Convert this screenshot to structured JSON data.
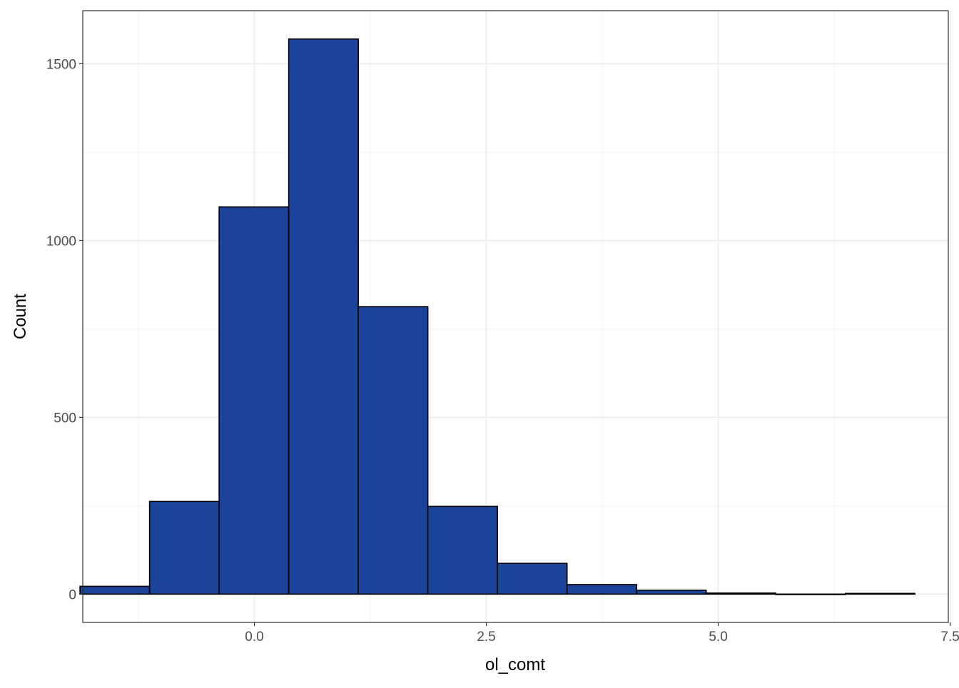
{
  "chart_data": {
    "type": "bar",
    "subtype": "histogram",
    "title": "",
    "xlabel": "ol_comt",
    "ylabel": "Count",
    "xlim": [
      -1.85,
      7.48
    ],
    "ylim": [
      -80,
      1650
    ],
    "x_ticks": [
      0.0,
      2.5,
      5.0,
      7.5
    ],
    "x_tick_labels": [
      "0.0",
      "2.5",
      "5.0",
      "7.5"
    ],
    "x_minor_ticks": [
      -1.25,
      1.25,
      3.75,
      6.25
    ],
    "y_ticks": [
      0,
      500,
      1000,
      1500
    ],
    "y_tick_labels": [
      "0",
      "500",
      "1000",
      "1500"
    ],
    "y_minor_ticks": [
      250,
      750,
      1250
    ],
    "grid": true,
    "bar_fill": "#1a4399",
    "bar_edge": "#000000",
    "bins": [
      {
        "x_start": -1.88,
        "x_end": -1.13,
        "count": 22
      },
      {
        "x_start": -1.13,
        "x_end": -0.38,
        "count": 262
      },
      {
        "x_start": -0.38,
        "x_end": 0.37,
        "count": 1095
      },
      {
        "x_start": 0.37,
        "x_end": 1.12,
        "count": 1570
      },
      {
        "x_start": 1.12,
        "x_end": 1.87,
        "count": 813
      },
      {
        "x_start": 1.87,
        "x_end": 2.62,
        "count": 248
      },
      {
        "x_start": 2.62,
        "x_end": 3.37,
        "count": 87
      },
      {
        "x_start": 3.37,
        "x_end": 4.12,
        "count": 27
      },
      {
        "x_start": 4.12,
        "x_end": 4.87,
        "count": 11
      },
      {
        "x_start": 4.87,
        "x_end": 5.62,
        "count": 3
      },
      {
        "x_start": 5.62,
        "x_end": 6.37,
        "count": 0
      },
      {
        "x_start": 6.37,
        "x_end": 7.12,
        "count": 2
      }
    ]
  }
}
